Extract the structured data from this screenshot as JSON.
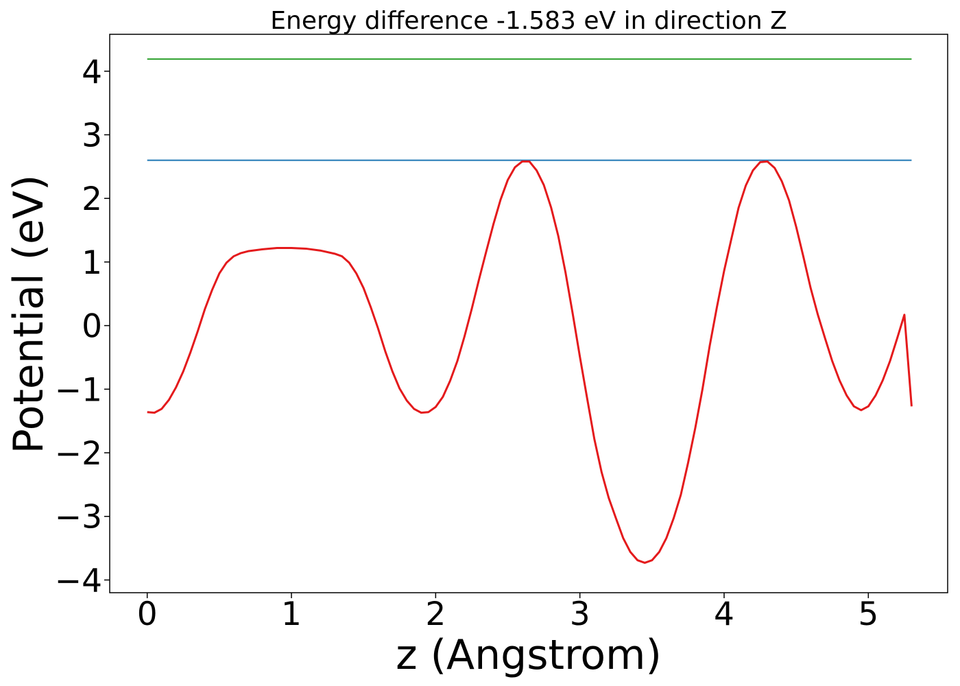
{
  "chart_data": {
    "type": "line",
    "title": "Energy difference -1.583 eV in direction Z",
    "xlabel": "z (Angstrom)",
    "ylabel": "Potential (eV)",
    "xlim": [
      -0.26,
      5.55
    ],
    "ylim": [
      -4.2,
      4.58
    ],
    "xticks": [
      0,
      1,
      2,
      3,
      4,
      5
    ],
    "xtick_labels": [
      "0",
      "1",
      "2",
      "3",
      "4",
      "5"
    ],
    "yticks": [
      -4,
      -3,
      -2,
      -1,
      0,
      1,
      2,
      3,
      4
    ],
    "ytick_labels": [
      "−4",
      "−3",
      "−2",
      "−1",
      "0",
      "1",
      "2",
      "3",
      "4"
    ],
    "grid": false,
    "series": [
      {
        "color": "#2ca02c",
        "x": [
          0,
          5.3
        ],
        "y": [
          4.19,
          4.19
        ]
      },
      {
        "color": "#1f77b4",
        "x": [
          0,
          5.3
        ],
        "y": [
          2.6,
          2.6
        ]
      },
      {
        "color": "#e41a1c",
        "x": [
          0.0,
          0.05,
          0.1,
          0.15,
          0.2,
          0.25,
          0.3,
          0.35,
          0.4,
          0.45,
          0.5,
          0.55,
          0.6,
          0.65,
          0.7,
          0.8,
          0.9,
          1.0,
          1.1,
          1.2,
          1.3,
          1.35,
          1.4,
          1.45,
          1.5,
          1.55,
          1.6,
          1.65,
          1.7,
          1.75,
          1.8,
          1.85,
          1.9,
          1.95,
          2.0,
          2.05,
          2.1,
          2.15,
          2.2,
          2.25,
          2.3,
          2.35,
          2.4,
          2.45,
          2.5,
          2.55,
          2.6,
          2.65,
          2.7,
          2.75,
          2.8,
          2.85,
          2.9,
          2.95,
          3.0,
          3.05,
          3.1,
          3.15,
          3.2,
          3.25,
          3.3,
          3.35,
          3.4,
          3.45,
          3.5,
          3.55,
          3.6,
          3.65,
          3.7,
          3.75,
          3.8,
          3.85,
          3.9,
          3.95,
          4.0,
          4.05,
          4.1,
          4.15,
          4.2,
          4.25,
          4.3,
          4.35,
          4.4,
          4.45,
          4.5,
          4.55,
          4.6,
          4.65,
          4.7,
          4.75,
          4.8,
          4.85,
          4.9,
          4.95,
          5.0,
          5.05,
          5.1,
          5.15,
          5.2,
          5.25,
          5.3
        ],
        "y": [
          -1.36,
          -1.37,
          -1.31,
          -1.17,
          -0.97,
          -0.72,
          -0.42,
          -0.09,
          0.26,
          0.56,
          0.82,
          0.99,
          1.09,
          1.14,
          1.17,
          1.2,
          1.22,
          1.22,
          1.21,
          1.18,
          1.13,
          1.09,
          0.99,
          0.82,
          0.59,
          0.29,
          -0.04,
          -0.4,
          -0.72,
          -0.99,
          -1.18,
          -1.31,
          -1.37,
          -1.36,
          -1.28,
          -1.12,
          -0.87,
          -0.56,
          -0.17,
          0.26,
          0.72,
          1.16,
          1.59,
          1.98,
          2.29,
          2.49,
          2.58,
          2.58,
          2.44,
          2.21,
          1.86,
          1.41,
          0.84,
          0.19,
          -0.49,
          -1.14,
          -1.78,
          -2.3,
          -2.71,
          -3.03,
          -3.34,
          -3.56,
          -3.69,
          -3.73,
          -3.69,
          -3.56,
          -3.34,
          -3.03,
          -2.66,
          -2.16,
          -1.61,
          -1.0,
          -0.32,
          0.29,
          0.86,
          1.36,
          1.85,
          2.2,
          2.44,
          2.57,
          2.58,
          2.48,
          2.27,
          1.97,
          1.55,
          1.08,
          0.59,
          0.17,
          -0.2,
          -0.56,
          -0.86,
          -1.1,
          -1.27,
          -1.33,
          -1.27,
          -1.1,
          -0.86,
          -0.56,
          -0.2,
          0.17,
          -1.27
        ]
      }
    ]
  }
}
